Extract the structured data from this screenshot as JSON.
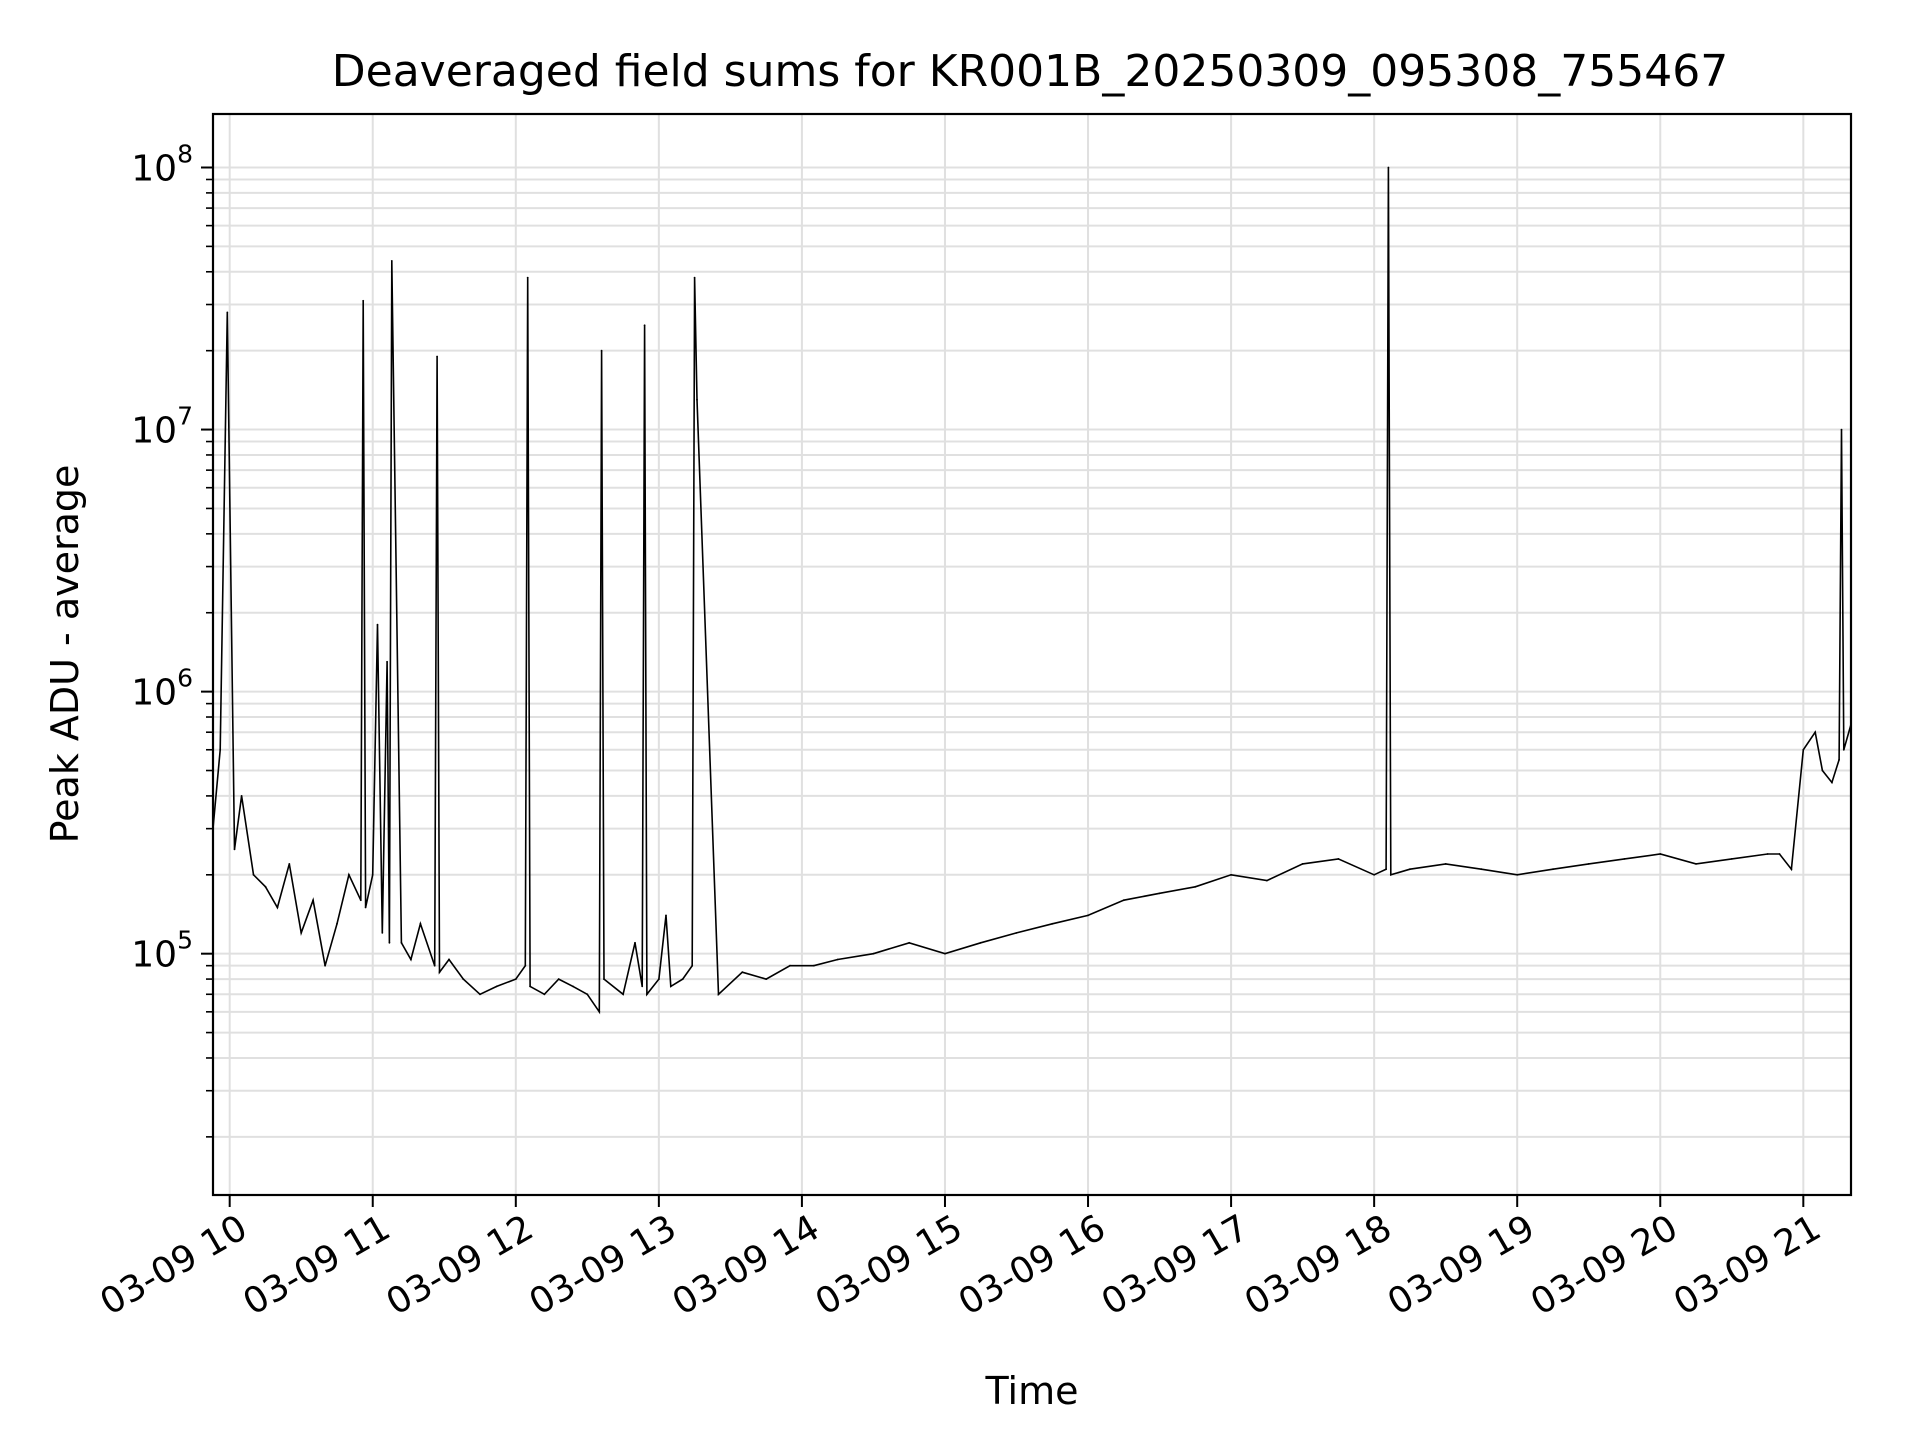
{
  "chart_data": {
    "type": "line",
    "title": "Deaveraged field sums for KR001B_20250309_095308_755467",
    "xlabel": "Time",
    "ylabel": "Peak ADU - average",
    "y_scale": "log",
    "grid": true,
    "line_color": "#000000",
    "grid_color": "#e0e0e0",
    "xlim": [
      "2025-03-09 09:53",
      "2025-03-09 21:20"
    ],
    "ylim": [
      12000,
      160000000
    ],
    "x_ticks": [
      "03-09 10",
      "03-09 11",
      "03-09 12",
      "03-09 13",
      "03-09 14",
      "03-09 15",
      "03-09 16",
      "03-09 17",
      "03-09 18",
      "03-09 19",
      "03-09 20",
      "03-09 21"
    ],
    "y_ticks": [
      {
        "base": "10",
        "exp": "5",
        "value": 100000
      },
      {
        "base": "10",
        "exp": "6",
        "value": 1000000
      },
      {
        "base": "10",
        "exp": "7",
        "value": 10000000
      },
      {
        "base": "10",
        "exp": "8",
        "value": 100000000
      }
    ],
    "series": [
      {
        "x": [
          "2025-03-09 09:53",
          "2025-03-09 09:56",
          "2025-03-09 09:59",
          "2025-03-09 10:02",
          "2025-03-09 10:05",
          "2025-03-09 10:10",
          "2025-03-09 10:15",
          "2025-03-09 10:20",
          "2025-03-09 10:25",
          "2025-03-09 10:30",
          "2025-03-09 10:35",
          "2025-03-09 10:40",
          "2025-03-09 10:45",
          "2025-03-09 10:50",
          "2025-03-09 10:55",
          "2025-03-09 10:56",
          "2025-03-09 10:57",
          "2025-03-09 11:00",
          "2025-03-09 11:02",
          "2025-03-09 11:04",
          "2025-03-09 11:06",
          "2025-03-09 11:07",
          "2025-03-09 11:08",
          "2025-03-09 11:12",
          "2025-03-09 11:16",
          "2025-03-09 11:20",
          "2025-03-09 11:26",
          "2025-03-09 11:27",
          "2025-03-09 11:28",
          "2025-03-09 11:32",
          "2025-03-09 11:38",
          "2025-03-09 11:45",
          "2025-03-09 11:52",
          "2025-03-09 12:00",
          "2025-03-09 12:04",
          "2025-03-09 12:05",
          "2025-03-09 12:06",
          "2025-03-09 12:12",
          "2025-03-09 12:18",
          "2025-03-09 12:24",
          "2025-03-09 12:30",
          "2025-03-09 12:35",
          "2025-03-09 12:36",
          "2025-03-09 12:37",
          "2025-03-09 12:45",
          "2025-03-09 12:50",
          "2025-03-09 12:53",
          "2025-03-09 12:54",
          "2025-03-09 12:55",
          "2025-03-09 13:00",
          "2025-03-09 13:03",
          "2025-03-09 13:05",
          "2025-03-09 13:10",
          "2025-03-09 13:14",
          "2025-03-09 13:15",
          "2025-03-09 13:16",
          "2025-03-09 13:25",
          "2025-03-09 13:35",
          "2025-03-09 13:45",
          "2025-03-09 13:55",
          "2025-03-09 14:05",
          "2025-03-09 14:15",
          "2025-03-09 14:30",
          "2025-03-09 14:45",
          "2025-03-09 15:00",
          "2025-03-09 15:15",
          "2025-03-09 15:30",
          "2025-03-09 15:45",
          "2025-03-09 16:00",
          "2025-03-09 16:15",
          "2025-03-09 16:30",
          "2025-03-09 16:45",
          "2025-03-09 17:00",
          "2025-03-09 17:15",
          "2025-03-09 17:30",
          "2025-03-09 17:45",
          "2025-03-09 18:00",
          "2025-03-09 18:05",
          "2025-03-09 18:06",
          "2025-03-09 18:07",
          "2025-03-09 18:15",
          "2025-03-09 18:30",
          "2025-03-09 18:45",
          "2025-03-09 19:00",
          "2025-03-09 19:15",
          "2025-03-09 19:30",
          "2025-03-09 19:45",
          "2025-03-09 20:00",
          "2025-03-09 20:15",
          "2025-03-09 20:30",
          "2025-03-09 20:45",
          "2025-03-09 20:50",
          "2025-03-09 20:55",
          "2025-03-09 21:00",
          "2025-03-09 21:05",
          "2025-03-09 21:08",
          "2025-03-09 21:12",
          "2025-03-09 21:15",
          "2025-03-09 21:16",
          "2025-03-09 21:17",
          "2025-03-09 21:20"
        ],
        "y": [
          300000,
          600000,
          28000000,
          250000,
          400000,
          200000,
          180000,
          150000,
          220000,
          120000,
          160000,
          90000,
          130000,
          200000,
          160000,
          31000000,
          150000,
          200000,
          1800000,
          120000,
          1300000,
          110000,
          44000000,
          110000,
          95000,
          130000,
          90000,
          19000000,
          85000,
          95000,
          80000,
          70000,
          75000,
          80000,
          90000,
          38000000,
          75000,
          70000,
          80000,
          75000,
          70000,
          60000,
          20000000,
          80000,
          70000,
          110000,
          75000,
          25000000,
          70000,
          80000,
          140000,
          75000,
          80000,
          90000,
          38000000,
          13000000,
          70000,
          85000,
          80000,
          90000,
          90000,
          95000,
          100000,
          110000,
          100000,
          110000,
          120000,
          130000,
          140000,
          160000,
          170000,
          180000,
          200000,
          190000,
          220000,
          230000,
          200000,
          210000,
          100000000,
          200000,
          210000,
          220000,
          210000,
          200000,
          210000,
          220000,
          230000,
          240000,
          220000,
          230000,
          240000,
          240000,
          210000,
          600000,
          700000,
          500000,
          450000,
          550000,
          10000000,
          600000,
          750000
        ]
      }
    ]
  }
}
